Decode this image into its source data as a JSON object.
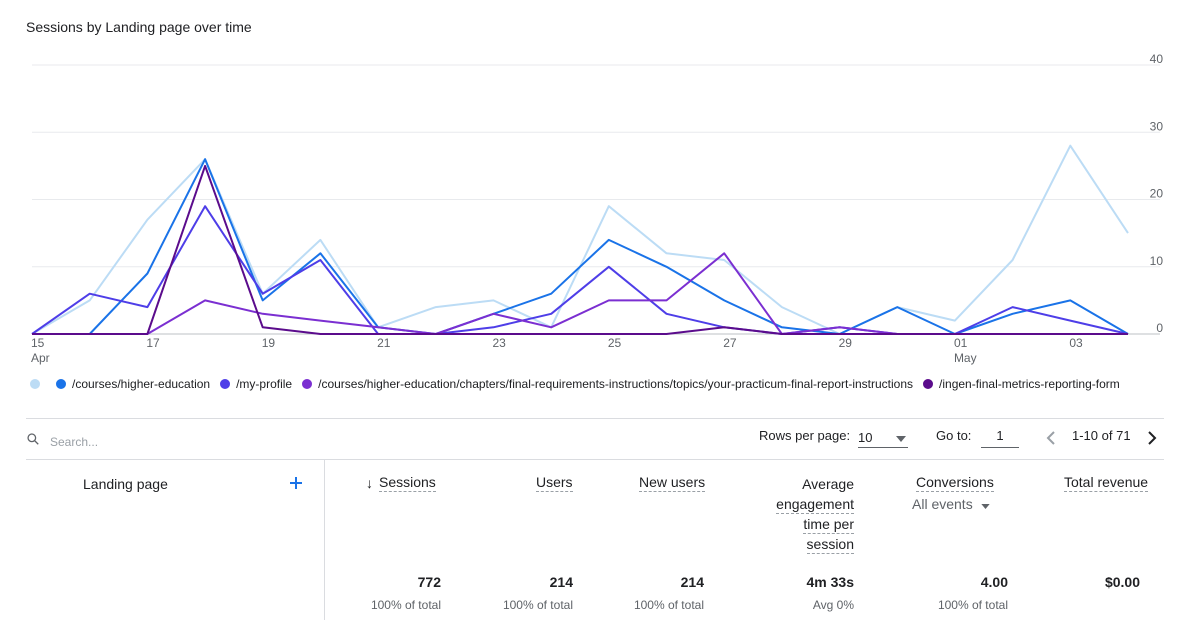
{
  "chart_title": "Sessions by Landing page over time",
  "chart_data": {
    "type": "line",
    "title": "Sessions by Landing page over time",
    "x_labels": [
      "15",
      "",
      "17",
      "",
      "19",
      "",
      "21",
      "",
      "23",
      "",
      "25",
      "",
      "27",
      "",
      "29",
      "",
      "01",
      "",
      "03",
      ""
    ],
    "x_sublabels": {
      "0": "Apr",
      "16": "May"
    },
    "ylim": [
      0,
      40
    ],
    "yticks": [
      0,
      10,
      20,
      30,
      40
    ],
    "y_axis_side": "right",
    "grid": true,
    "series": [
      {
        "name": "",
        "color": "#bcdcf5",
        "values": [
          0,
          5,
          17,
          26,
          6,
          14,
          1,
          4,
          5,
          1,
          19,
          12,
          11,
          4,
          0,
          4,
          2,
          11,
          28,
          15
        ]
      },
      {
        "name": "/courses/higher-education",
        "color": "#1a73e8",
        "values": [
          0,
          0,
          9,
          26,
          5,
          12,
          1,
          0,
          3,
          6,
          14,
          10,
          5,
          1,
          0,
          4,
          0,
          3,
          5,
          0
        ]
      },
      {
        "name": "/my-profile",
        "color": "#4e3ee8",
        "values": [
          0,
          6,
          4,
          19,
          6,
          11,
          0,
          0,
          1,
          3,
          10,
          3,
          1,
          0,
          1,
          0,
          0,
          4,
          2,
          0
        ]
      },
      {
        "name": "/courses/higher-education/chapters/final-requirements-instructions/topics/your-practicum-final-report-instructions",
        "color": "#7b2fd1",
        "values": [
          0,
          0,
          0,
          5,
          3,
          2,
          1,
          0,
          3,
          1,
          5,
          5,
          12,
          0,
          1,
          0,
          0,
          0,
          0,
          0
        ]
      },
      {
        "name": "/ingen-final-metrics-reporting-form",
        "color": "#5b0c8c",
        "values": [
          0,
          0,
          0,
          25,
          1,
          0,
          0,
          0,
          0,
          0,
          0,
          0,
          1,
          0,
          0,
          0,
          0,
          0,
          0,
          0
        ]
      }
    ]
  },
  "search": {
    "placeholder": "Search..."
  },
  "pager": {
    "rows_label": "Rows per page:",
    "rows_value": "10",
    "goto_label": "Go to:",
    "goto_value": "1",
    "range": "1-10 of 71"
  },
  "table": {
    "dimension_header": "Landing page",
    "sort_arrow": "↓",
    "headers": {
      "sessions": "Sessions",
      "users": "Users",
      "new_users": "New users",
      "avg_eng_1": "Average",
      "avg_eng_2": "engagement",
      "avg_eng_3": "time per",
      "avg_eng_4": "session",
      "conversions": "Conversions",
      "conversions_sub": "All events",
      "revenue": "Total revenue"
    },
    "totals": {
      "sessions": "772",
      "users": "214",
      "new_users": "214",
      "avg_eng": "4m 33s",
      "conversions": "4.00",
      "revenue": "$0.00"
    },
    "totals_sub": {
      "sessions": "100% of total",
      "users": "100% of total",
      "new_users": "100% of total",
      "avg_eng": "Avg 0%",
      "conversions": "100% of total"
    }
  },
  "icons": {
    "search": "search-icon",
    "add": "plus-icon",
    "dropdown": "caret-down-icon",
    "prev": "chevron-left-icon",
    "next": "chevron-right-icon"
  }
}
